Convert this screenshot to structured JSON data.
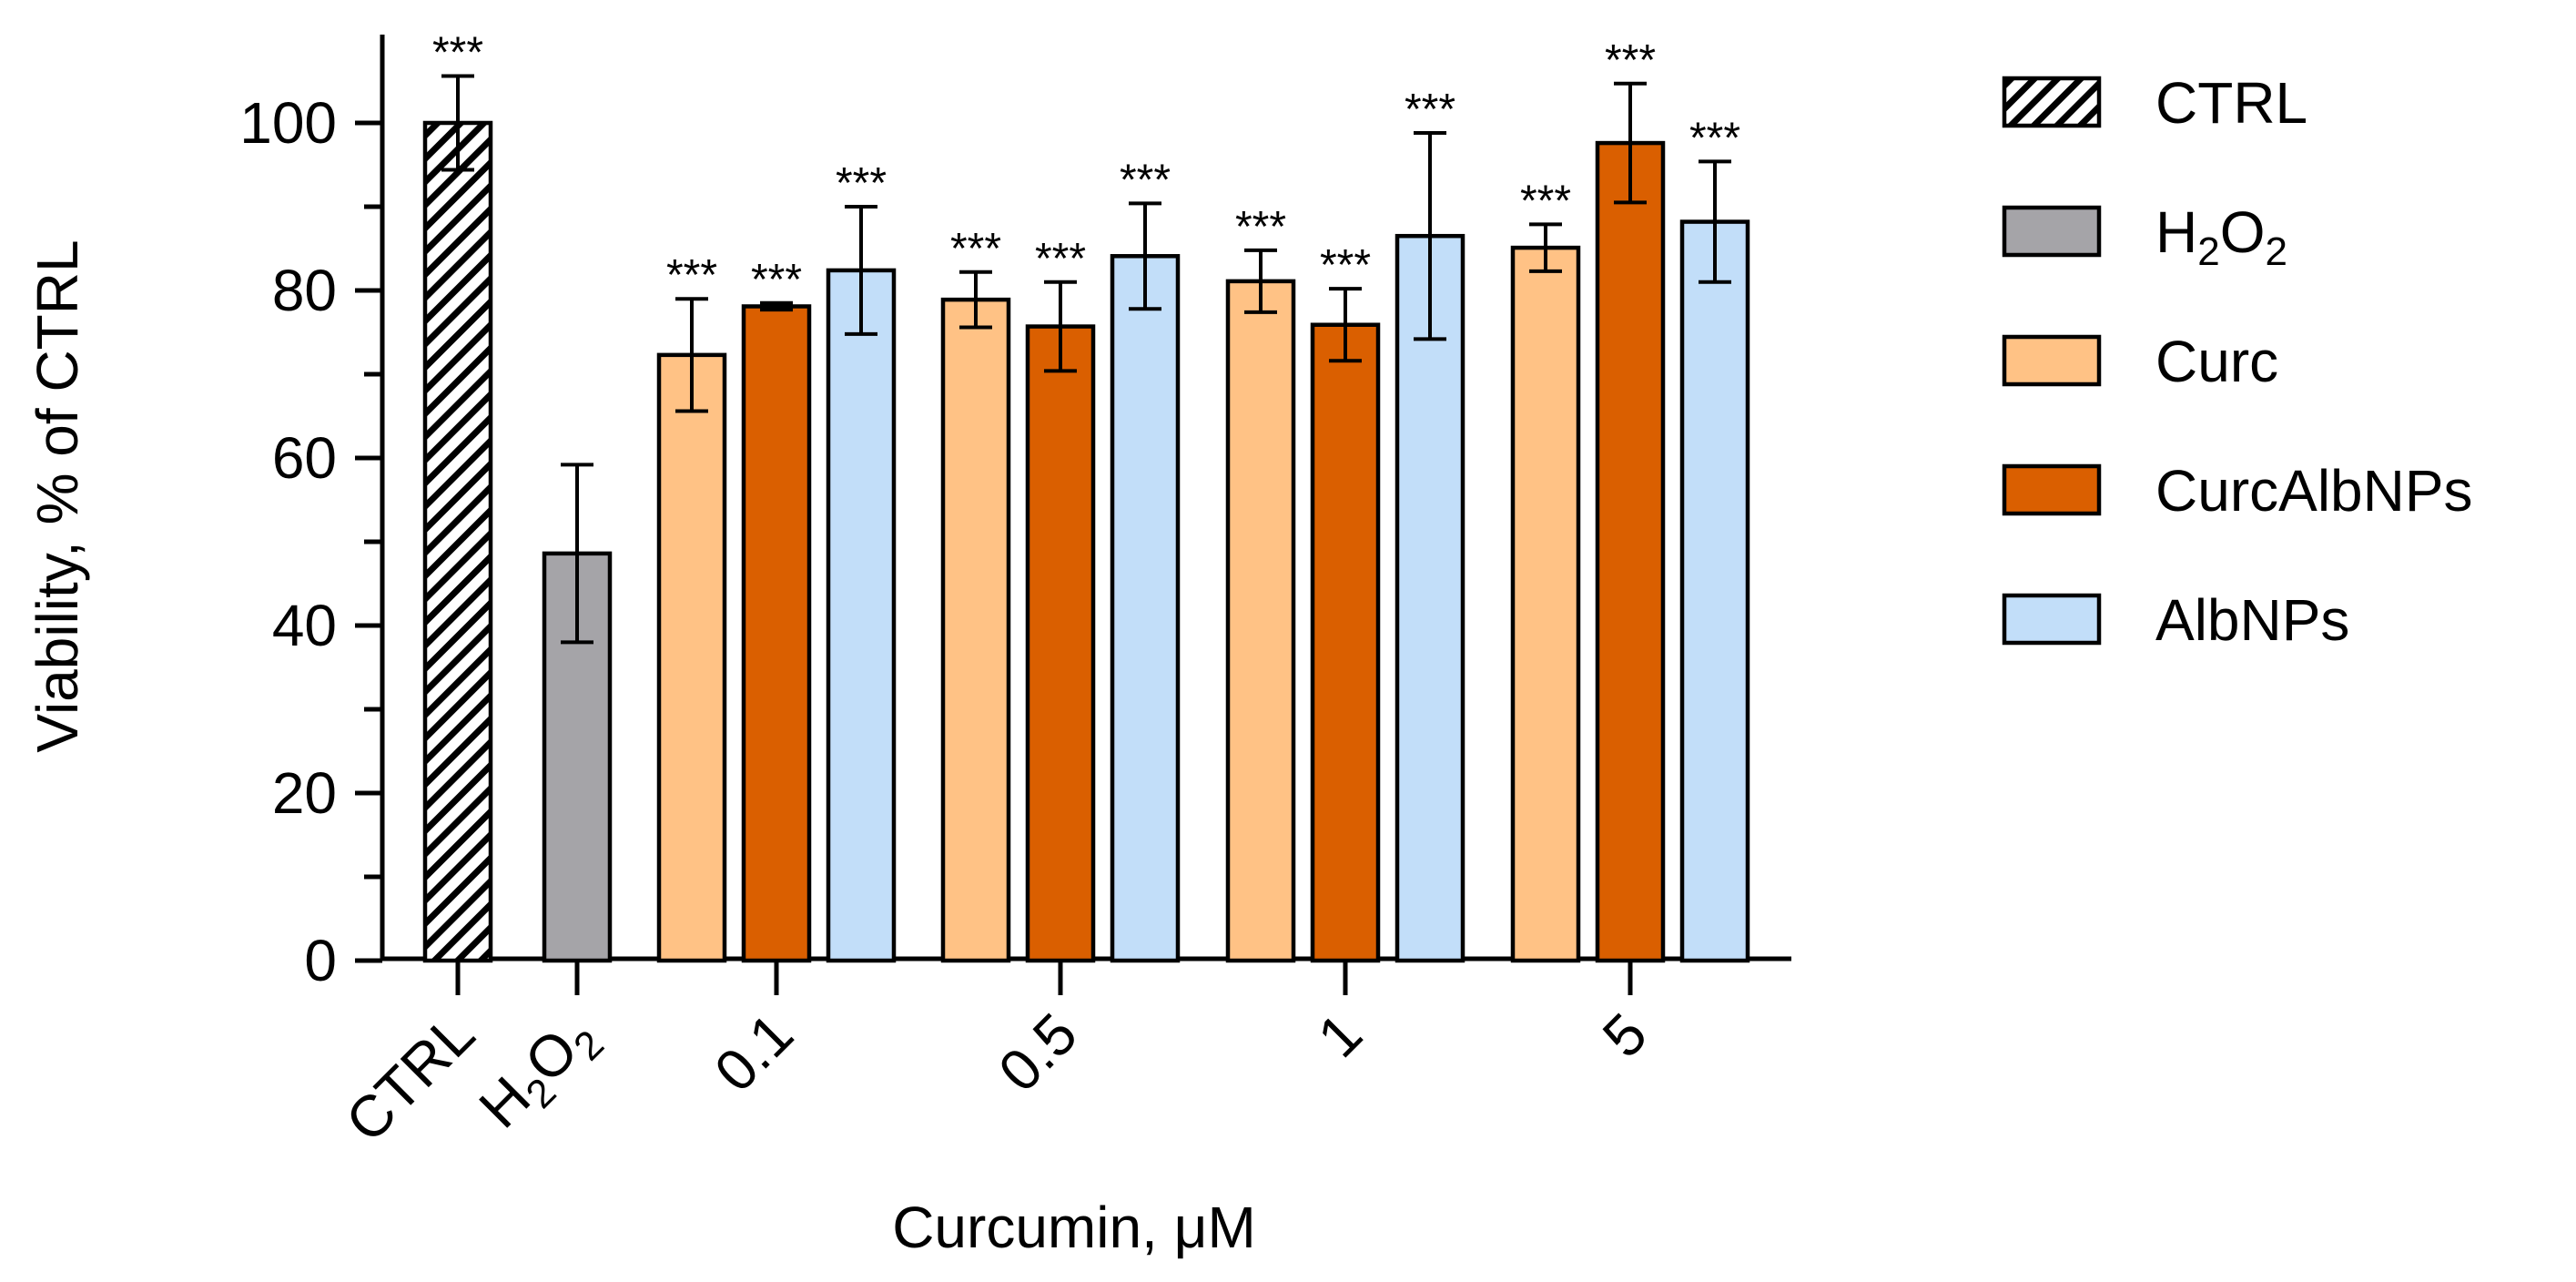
{
  "chart_data": {
    "type": "bar",
    "ylabel": "Viability, % of CTRL",
    "xlabel": "Curcumin, μM",
    "ylim": [
      0,
      110
    ],
    "yticks": [
      "0",
      "20",
      "40",
      "60",
      "80",
      "100"
    ],
    "grid": false,
    "legend_position": "right",
    "significance_mark": "***",
    "controls": [
      {
        "label": "CTRL",
        "series": "CTRL",
        "value": 100,
        "error": 5.6,
        "significance": "***"
      },
      {
        "label": "H₂O₂",
        "series": "H2O2",
        "value": 48.6,
        "error": 10.6,
        "significance": ""
      }
    ],
    "categories": [
      "0.1",
      "0.5",
      "1",
      "5"
    ],
    "series": [
      {
        "key": "Curc",
        "name": "Curc",
        "color": "#FFC285",
        "values": [
          72.3,
          78.9,
          81.1,
          85.1
        ],
        "errors": [
          6.7,
          3.3,
          3.7,
          2.8
        ],
        "significance": [
          "***",
          "***",
          "***",
          "***"
        ]
      },
      {
        "key": "CurcAlbNPs",
        "name": "CurcAlbNPs",
        "color": "#DA5F00",
        "values": [
          78.1,
          75.7,
          75.9,
          97.6
        ],
        "errors": [
          0.4,
          5.3,
          4.3,
          7.1
        ],
        "significance": [
          "***",
          "***",
          "***",
          "***"
        ]
      },
      {
        "key": "AlbNPs",
        "name": "AlbNPs",
        "color": "#C2DEF9",
        "values": [
          82.4,
          84.1,
          86.5,
          88.2
        ],
        "errors": [
          7.6,
          6.3,
          12.3,
          7.2
        ],
        "significance": [
          "***",
          "***",
          "***",
          "***"
        ]
      }
    ],
    "legend": [
      {
        "label": "CTRL",
        "fill": "hatch"
      },
      {
        "label": "H",
        "sub": "2",
        "mid": "O",
        "sub2": "2",
        "fill": "#A5A4A8"
      },
      {
        "label": "Curc",
        "fill": "#FFC285"
      },
      {
        "label": "CurcAlbNPs",
        "fill": "#DA5F00"
      },
      {
        "label": "AlbNPs",
        "fill": "#C2DEF9"
      }
    ]
  }
}
